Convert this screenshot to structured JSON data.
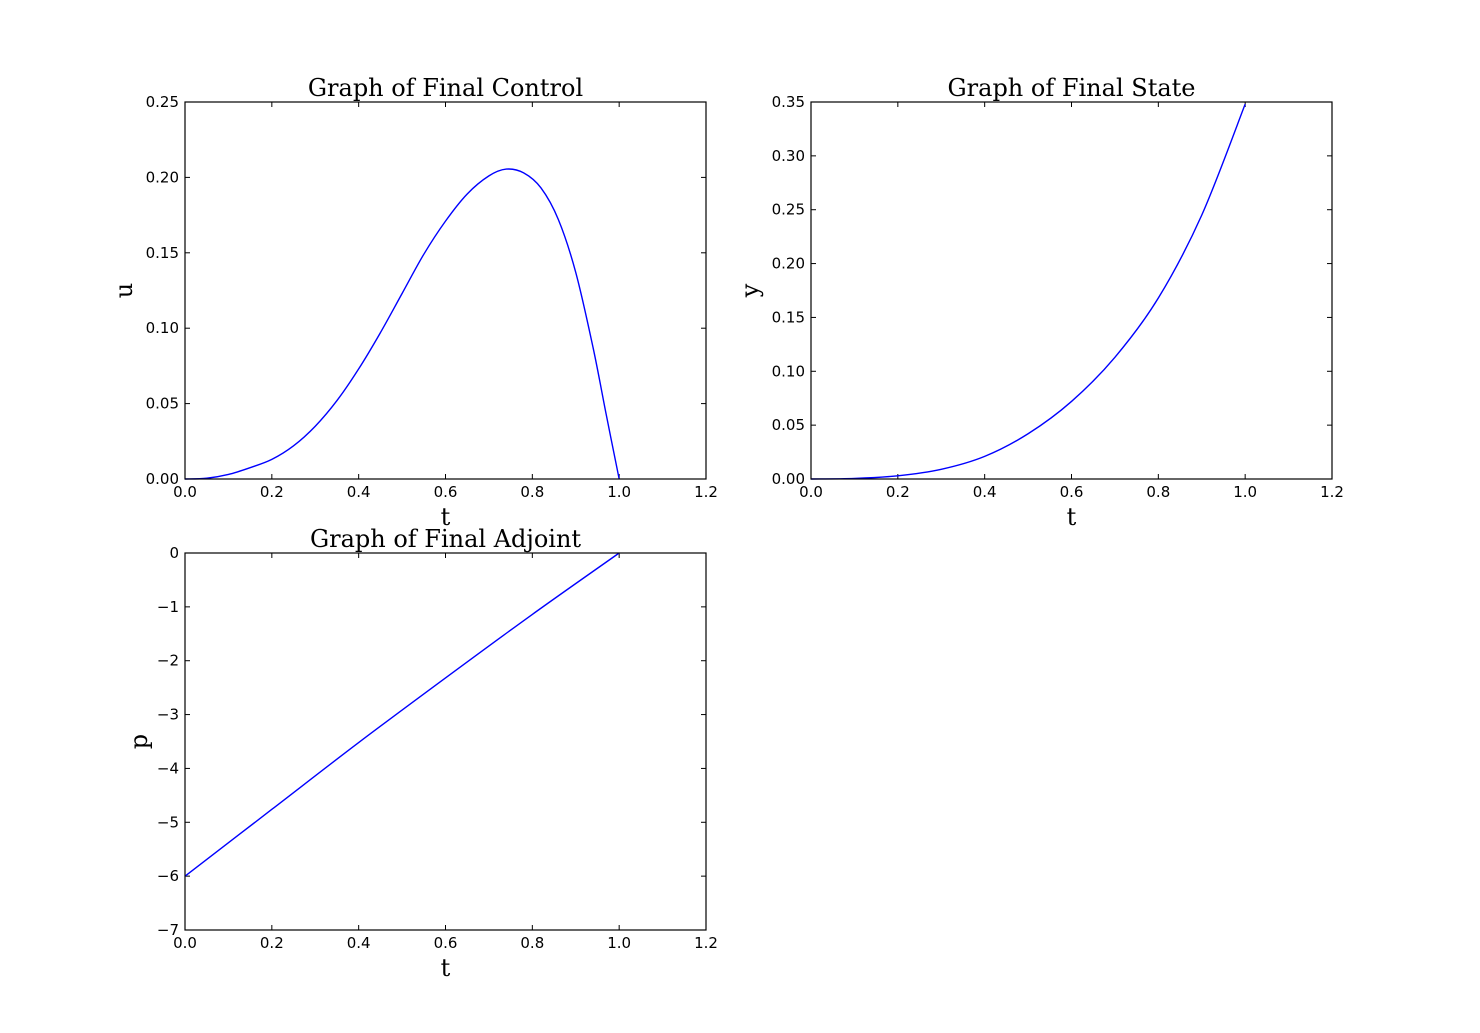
{
  "chart_data": [
    {
      "type": "line",
      "title": "Graph of Final Control",
      "xlabel": "t",
      "ylabel": "u",
      "xlim": [
        0,
        1.2
      ],
      "ylim": [
        0,
        0.25
      ],
      "xticks": [
        "0.0",
        "0.2",
        "0.4",
        "0.6",
        "0.8",
        "1.0",
        "1.2"
      ],
      "yticks": [
        "0.00",
        "0.05",
        "0.10",
        "0.15",
        "0.20",
        "0.25"
      ],
      "grid": false,
      "series": [
        {
          "color": "#0000ff",
          "x": [
            0.0,
            0.05,
            0.1,
            0.15,
            0.2,
            0.25,
            0.3,
            0.35,
            0.4,
            0.45,
            0.5,
            0.55,
            0.6,
            0.65,
            0.7,
            0.74,
            0.78,
            0.82,
            0.86,
            0.9,
            0.94,
            0.97,
            1.0
          ],
          "y": [
            0.0,
            0.0005,
            0.003,
            0.0075,
            0.013,
            0.022,
            0.035,
            0.052,
            0.073,
            0.097,
            0.123,
            0.149,
            0.171,
            0.189,
            0.201,
            0.2055,
            0.203,
            0.193,
            0.172,
            0.137,
            0.087,
            0.043,
            0.0
          ]
        }
      ]
    },
    {
      "type": "line",
      "title": "Graph of Final State",
      "xlabel": "t",
      "ylabel": "y",
      "xlim": [
        0,
        1.2
      ],
      "ylim": [
        0,
        0.35
      ],
      "xticks": [
        "0.0",
        "0.2",
        "0.4",
        "0.6",
        "0.8",
        "1.0",
        "1.2"
      ],
      "yticks": [
        "0.00",
        "0.05",
        "0.10",
        "0.15",
        "0.20",
        "0.25",
        "0.30",
        "0.35"
      ],
      "grid": false,
      "series": [
        {
          "color": "#0000ff",
          "x": [
            0.0,
            0.1,
            0.2,
            0.3,
            0.4,
            0.5,
            0.6,
            0.7,
            0.8,
            0.9,
            1.0
          ],
          "y": [
            0.0,
            0.0005,
            0.003,
            0.009,
            0.021,
            0.042,
            0.072,
            0.113,
            0.168,
            0.245,
            0.348
          ]
        }
      ]
    },
    {
      "type": "line",
      "title": "Graph of Final Adjoint",
      "xlabel": "t",
      "ylabel": "p",
      "xlim": [
        0,
        1.2
      ],
      "ylim": [
        -7,
        0
      ],
      "xticks": [
        "0.0",
        "0.2",
        "0.4",
        "0.6",
        "0.8",
        "1.0",
        "1.2"
      ],
      "yticks": [
        "−7",
        "−6",
        "−5",
        "−4",
        "−3",
        "−2",
        "−1",
        "0"
      ],
      "grid": false,
      "series": [
        {
          "color": "#0000ff",
          "x": [
            0.0,
            0.2,
            0.4,
            0.6,
            0.8,
            1.0
          ],
          "y": [
            -6.0,
            -4.76,
            -3.52,
            -2.32,
            -1.14,
            0.0
          ]
        }
      ]
    }
  ]
}
